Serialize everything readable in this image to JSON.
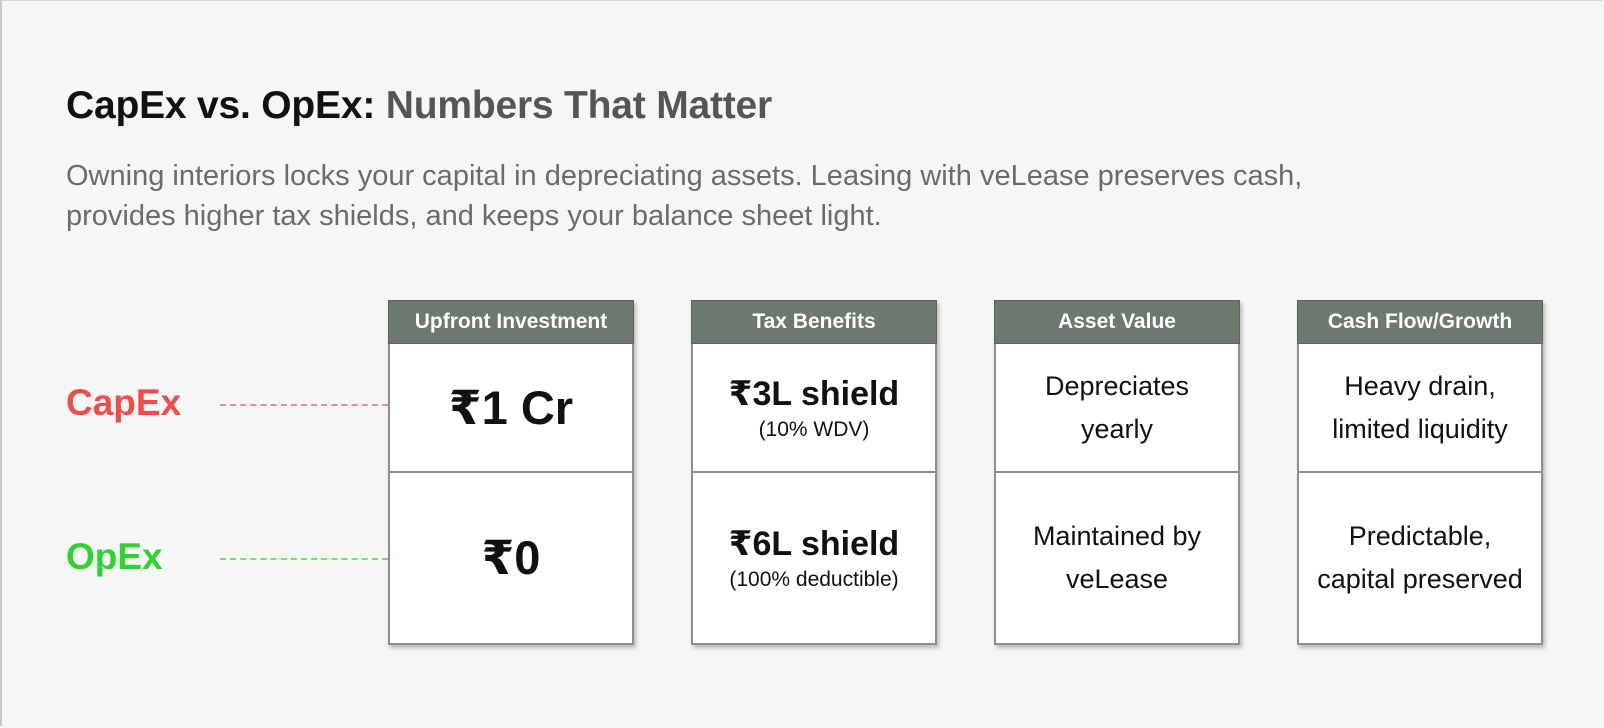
{
  "heading": {
    "title_main": "CapEx vs. OpEx:",
    "title_accent": "Numbers That Matter",
    "description": "Owning interiors locks your capital in depreciating assets. Leasing with veLease preserves cash, provides higher tax shields, and keeps your balance sheet light."
  },
  "rows": {
    "capex_label": "CapEx",
    "opex_label": "OpEx"
  },
  "colors": {
    "capex": "#ef4c4c",
    "opex": "#2fd32f",
    "header_bg": "#6d786e"
  },
  "columns": [
    {
      "header": "Upfront Investment",
      "capex": {
        "main": "₹1 Cr",
        "sub": ""
      },
      "opex": {
        "main": "₹0",
        "sub": ""
      }
    },
    {
      "header": "Tax Benefits",
      "capex": {
        "main": "₹3L shield",
        "sub": "(10% WDV)"
      },
      "opex": {
        "main": "₹6L shield",
        "sub": "(100% deductible)"
      }
    },
    {
      "header": "Asset Value",
      "capex": {
        "line1": "Depreciates",
        "line2": "yearly"
      },
      "opex": {
        "line1": "Maintained by",
        "line2": "veLease"
      }
    },
    {
      "header": "Cash Flow/Growth",
      "capex": {
        "line1": "Heavy drain,",
        "line2": "limited liquidity"
      },
      "opex": {
        "line1": "Predictable,",
        "line2": "capital preserved"
      }
    }
  ]
}
